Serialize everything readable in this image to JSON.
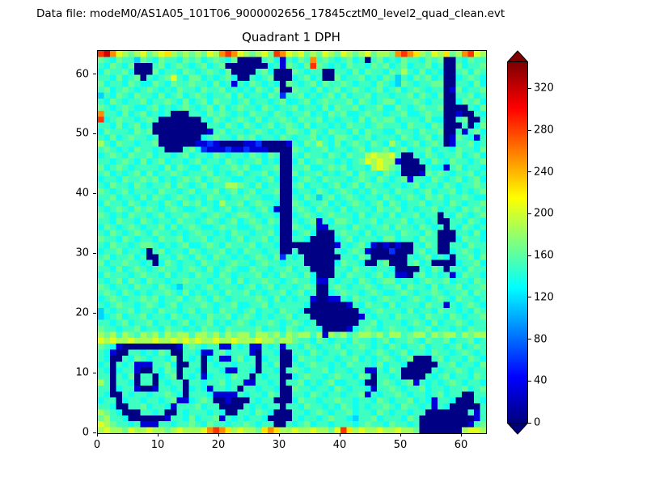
{
  "figure": {
    "data_file_line": "Data file: modeM0/AS1A05_101T06_9000002656_17845cztM0_level2_quad_clean.evt",
    "background_color": "#ffffff"
  },
  "chart_data": {
    "type": "heatmap",
    "title": "Quadrant 1 DPH",
    "xlabel": "",
    "ylabel": "",
    "xlim": [
      0,
      64
    ],
    "ylim": [
      0,
      64
    ],
    "x_ticks": [
      0,
      10,
      20,
      30,
      40,
      50,
      60
    ],
    "y_ticks": [
      0,
      10,
      20,
      30,
      40,
      50,
      60
    ],
    "grid_on": false,
    "colormap": "jet",
    "colorbar": {
      "position": "right",
      "ticks": [
        0,
        40,
        80,
        120,
        160,
        200,
        240,
        280,
        320
      ],
      "vmin": 0,
      "vmax": 345,
      "extend": "both",
      "under_color": "#00007f",
      "over_color": "#800000"
    },
    "grid_size": [
      64,
      64
    ],
    "char_values": {
      "0": 2,
      "1": 30,
      "2": 60,
      "3": 90,
      "4": 115,
      "5": 135,
      "6": 150,
      "7": 165,
      "8": 185,
      "9": 205,
      "a": 225,
      "b": 255,
      "c": 285,
      "d": 315,
      "e": 340
    },
    "grid_rows_top_to_bottom": [
      "cdb98789789a87878798bcb987897cb989787987987897887bcba8798a78bc98",
      "7657664765766576756765700006751 6576b676567560675657665767 0065766",
      "6576570006756765675670000000561 7657c765657665767567566756 0075667",
      "5766750007566576567657000067500 0765660066575766576865756 50067576",
      "6657567065679657756567500656700 0567560075667565764657675 60056765",
      "7566576557657667665756165765650 7656757667656657654765667 70066575",
      "6756765676565766576675656576570 0766575675676567567567656 60175667",
      "4657657665756756765667575665762 6675656757566756656675765 70066756",
      "6576566756676575675766567566567 5567567666757656775667656 60057675",
      "7656765567565676567575676657656 6756657576675667557656766 70000657",
      "b665756756560006657676565766576 5667565767556766566755676 60010065",
      "c567665676000000065765676575667 6576675656657576775666575 50067006",
      "6657567560000000006657657656756 7657566565766567666576657 60006057",
      "5766657670000000001675665676565 7765765766575766557665766 70061675",
      "6575676656000000056766576756657 6566756577656756665765675 60176516",
      "8657665667000000112100001120000 1657686575676576586567567 60166756",
      "6765657665600067521112112111000 0765667566567566756756675 66576657",
      "5676576675665675665765665765760 0657665765766898896006576 56675675",
      "6656765756756656756657656675650 0575676656567989881000657 65766567",
      "7567656666575765576566767556670 0667556767566589876000065 51675665",
      "6756567575667656667565675667560 0756675656757665765000176 76566756",
      "5665766767565676756766556656750 0567657666567657656716657 65675675",
      "6576657656675765675668876575660 0675665675675766566567566 57656676",
      "7656756665766567566756756756670 0566576567656576657665675 66756567",
      "6675665757656765657665667665560 0657646756765665765676576 75667655",
      "5766576566576576756586675676650 0765667565676567576566756 65765667",
      "6567657676567655676567566567510 0676576657566657667565667 56657676",
      "7656576656756676656765677656650 0567656766657566575667566 06576567",
      "6657665765665766567656756765760 0656716577656675666756656 00665765",
      "5765676566757567655676655676650 0765611666576566757665765 60657656",
      "6576567657665656766565766566750 0567500067665756665766576 00066575",
      "7665765665766756675665675667560 0665000056756665775665766 00057665",
      "6576656776565675567657666756650 0000000016567510101006576 00665766",
      "5667566506756657656675657665660 0600000065676100020006756 00567656",
      "6756675600665765765766565676572 6560000006657600000065675 65066757",
      "7566766560576566576656766567665 6660000057665006700067560 00056675",
      "6657567656766567657567655766566 7566000066576656650000657 60665766",
      "5766656766575665766576566675657 6657500065766567561106756 56157665",
      "6567576576656676665667575667665 6766511656657656775665676 67566576",
      "7656657665765466567566656756756 6567600676566765667576657 56675667",
      "6765765656676575656657667565667 5675600567665676556765667 65667576",
      "5676566767566756765765666676575 6566100116576656766567656 76576656",
      "6567665676567566676566755667566 6665000000165766575666576 61656765",
      "4656675665766567566576656756657 6650000000006567666575665 76656576",
      "4567566756657656657667567656566 7566000000001656657666576 65765667",
      "6656756675665675667565676566765 6765600000006675666567657 56676566",
      "7665667566576656576657666675665 7656650000156765676656675 66565766",
      "8786876878687886887868788688786 8788681878678878688678868 78868788",
      "9898898889889898988988988898878 8766576566576656756676576 67566756",
      "7651000000000167656611656116561 6657656675667656576566756 65675676",
      "6510066565760066511675666106650 0665765667566567656756657 66567656",
      "6500657656657065605611675605660 0576656656675656765670006 75665765",
      "5606561116675006606566566606570 0656766565766657566500000 66756657",
      "6505661006576066506651166506650 6765667566566116576000006 56676566",
      "6606570660567065615665766065660 0567665676657606656000065 67566576",
      "8606650660656606656675661166560 6675656755665006765671656 56765665",
      "6605661001665605651665606656650 0766566576566516676566756 65667567",
      "6500656656676506665111165665760 0665765665667165667656656 75660066",
      "5660566566567115676001000656600 0576656676656657656675651 66500065",
      "6650066756651666756600006565660 6657665657656566765766561 65000006",
      "8765000665600656665650066576500 0665676566756657656656600 00000616",
      "7866500000016657566716565665000 0656656766546675666576000 00000016",
      "9876656111665667657665667656600 6567566566656766576656000 00000167",
      "8988798898878988 89bcba89887aba889889887 9ca89889889887000 00008998"
    ]
  },
  "axis": {
    "frame_color": "#000000",
    "tick_color": "#000000"
  }
}
